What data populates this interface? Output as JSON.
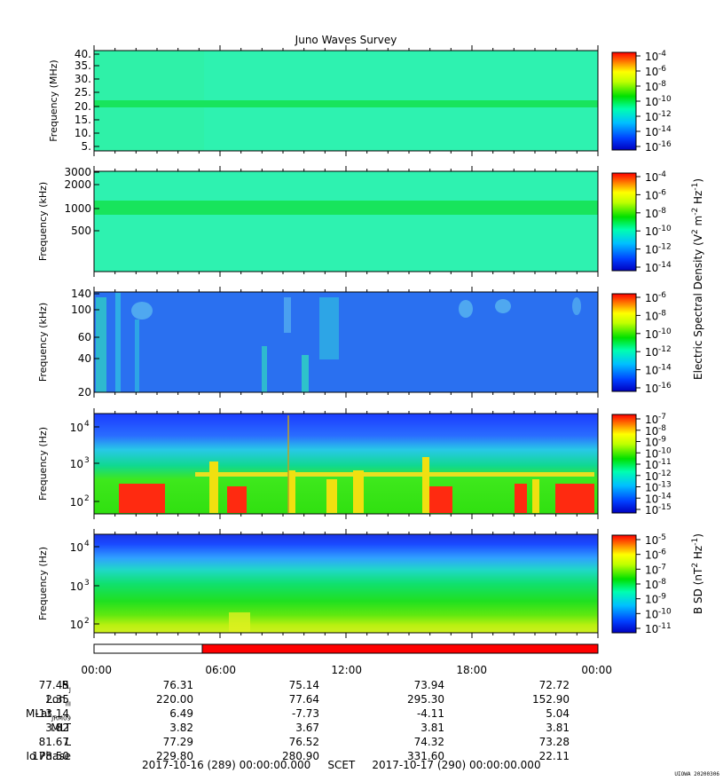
{
  "chart_data": {
    "type": "heatmap",
    "title": "Juno Waves Survey",
    "panels": [
      {
        "ylabel": "Frequency (MHz)",
        "yticks": [
          "40.",
          "35.",
          "30.",
          "25.",
          "20.",
          "15.",
          "10.",
          "5."
        ],
        "cbar_ticks": [
          "-4",
          "-6",
          "-8",
          "-10",
          "-12",
          "-14",
          "-16"
        ],
        "cbar_label": ""
      },
      {
        "ylabel": "Frequency (kHz)",
        "yticks": [
          "3000",
          "2000",
          "1000",
          "500"
        ],
        "cbar_ticks": [
          "-4",
          "-6",
          "-8",
          "-10",
          "-12",
          "-14"
        ],
        "cbar_label": "Electric Spectral Density (V2 m-2 Hz-1)"
      },
      {
        "ylabel": "Frequency (kHz)",
        "yticks": [
          "140",
          "100",
          "60",
          "40",
          "20"
        ],
        "cbar_ticks": [
          "-6",
          "-8",
          "-10",
          "-12",
          "-14",
          "-16"
        ],
        "cbar_label": ""
      },
      {
        "ylabel": "Frequency (Hz)",
        "yticks": [
          "10",
          "10",
          "10"
        ],
        "ytick_exps": [
          "4",
          "3",
          "2"
        ],
        "cbar_ticks": [
          "-7",
          "-8",
          "-9",
          "-10",
          "-11",
          "-12",
          "-13",
          "-14",
          "-15"
        ],
        "cbar_label": ""
      },
      {
        "ylabel": "Frequency (Hz)",
        "yticks": [
          "10",
          "10",
          "10"
        ],
        "ytick_exps": [
          "4",
          "3",
          "2"
        ],
        "cbar_ticks": [
          "-5",
          "-6",
          "-7",
          "-8",
          "-9",
          "-10",
          "-11"
        ],
        "cbar_label": "B SD (nT2 Hz-1)"
      }
    ],
    "cbar_base": "10",
    "xticks": [
      "00:00",
      "06:00",
      "12:00",
      "18:00",
      "00:00"
    ],
    "status_bar": {
      "white_fraction": 0.22,
      "red_color": "#ff0000"
    }
  },
  "ephemeris": {
    "labels": [
      "R",
      "Lon",
      "MLat",
      "MLT",
      "L",
      "Io Phase"
    ],
    "label_subs": [
      "J",
      "III",
      "JRM09",
      "",
      "",
      ""
    ],
    "columns": [
      [
        "77.45",
        "2.35",
        "-13.14",
        "3.82",
        "81.67",
        "178.50"
      ],
      [
        "76.31",
        "220.00",
        "6.49",
        "3.82",
        "77.29",
        "229.80"
      ],
      [
        "75.14",
        "77.64",
        "-7.73",
        "3.67",
        "76.52",
        "280.90"
      ],
      [
        "73.94",
        "295.30",
        "-4.11",
        "3.81",
        "74.32",
        "331.60"
      ],
      [
        "72.72",
        "152.90",
        "5.04",
        "3.81",
        "73.28",
        "22.11"
      ]
    ]
  },
  "footer": {
    "start": "2017-10-16 (289) 00:00:00.000",
    "mid": "SCET",
    "end": "2017-10-17 (290) 00:00:00.000"
  },
  "stamp": "UIOWA 20200306"
}
